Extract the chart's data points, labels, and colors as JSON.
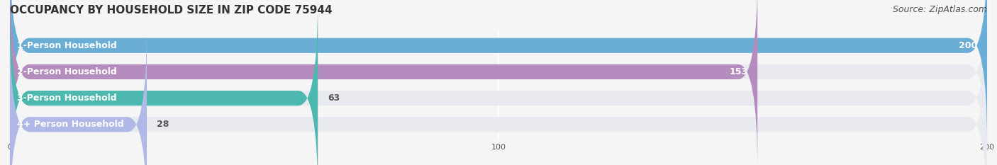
{
  "title": "OCCUPANCY BY HOUSEHOLD SIZE IN ZIP CODE 75944",
  "source": "Source: ZipAtlas.com",
  "categories": [
    "1-Person Household",
    "2-Person Household",
    "3-Person Household",
    "4+ Person Household"
  ],
  "values": [
    200,
    153,
    63,
    28
  ],
  "bar_colors": [
    "#6aaed6",
    "#b48cbd",
    "#4db8b0",
    "#b0b8e8"
  ],
  "bar_bg_color": "#e8eaf0",
  "xlim": [
    0,
    200
  ],
  "xticks": [
    0,
    100,
    200
  ],
  "title_fontsize": 11,
  "source_fontsize": 9,
  "label_fontsize": 9,
  "value_fontsize": 9,
  "background_color": "#f5f5f5",
  "bar_height": 0.55
}
